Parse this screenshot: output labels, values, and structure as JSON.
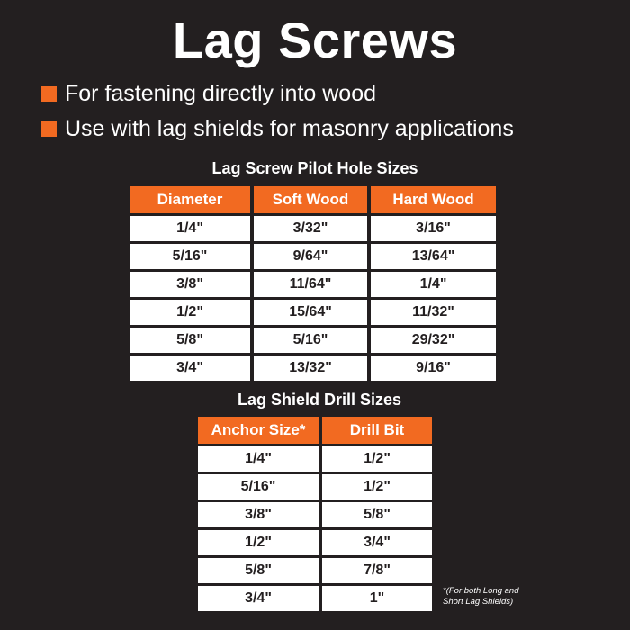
{
  "title": "Lag Screws",
  "bullets": [
    "For fastening directly into wood",
    "Use with lag shields for masonry applications"
  ],
  "colors": {
    "accent": "#f26a21",
    "background": "#231f20"
  },
  "pilot_table": {
    "title": "Lag Screw Pilot Hole Sizes",
    "headers": [
      "Diameter",
      "Soft Wood",
      "Hard Wood"
    ],
    "rows": [
      [
        "1/4\"",
        "3/32\"",
        "3/16\""
      ],
      [
        "5/16\"",
        "9/64\"",
        "13/64\""
      ],
      [
        "3/8\"",
        "11/64\"",
        "1/4\""
      ],
      [
        "1/2\"",
        "15/64\"",
        "11/32\""
      ],
      [
        "5/8\"",
        "5/16\"",
        "29/32\""
      ],
      [
        "3/4\"",
        "13/32\"",
        "9/16\""
      ]
    ]
  },
  "shield_table": {
    "title": "Lag Shield Drill Sizes",
    "headers": [
      "Anchor Size*",
      "Drill Bit"
    ],
    "rows": [
      [
        "1/4\"",
        "1/2\""
      ],
      [
        "5/16\"",
        "1/2\""
      ],
      [
        "3/8\"",
        "5/8\""
      ],
      [
        "1/2\"",
        "3/4\""
      ],
      [
        "5/8\"",
        "7/8\""
      ],
      [
        "3/4\"",
        "1\""
      ]
    ],
    "note_line1": "*(For both Long and",
    "note_line2": "Short Lag Shields)"
  }
}
